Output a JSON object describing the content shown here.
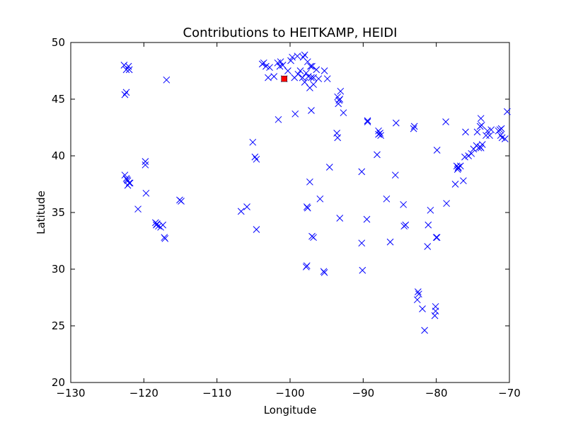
{
  "chart_data": {
    "type": "scatter",
    "title": "Contributions to HEITKAMP, HEIDI",
    "xlabel": "Longitude",
    "ylabel": "Latitude",
    "xlim": [
      -130,
      -70
    ],
    "ylim": [
      20,
      50
    ],
    "xticks": [
      -130,
      -120,
      -110,
      -100,
      -90,
      -80,
      -70
    ],
    "yticks": [
      20,
      25,
      30,
      35,
      40,
      45,
      50
    ],
    "marker_color": "#0000ff",
    "highlight_color": "#ff0000",
    "points": [
      [
        -122.7,
        48.0
      ],
      [
        -122.4,
        47.6
      ],
      [
        -122.1,
        47.9
      ],
      [
        -122.0,
        47.6
      ],
      [
        -122.6,
        45.4
      ],
      [
        -122.4,
        45.6
      ],
      [
        -116.9,
        46.7
      ],
      [
        -122.6,
        38.3
      ],
      [
        -122.4,
        38.0
      ],
      [
        -122.2,
        37.8
      ],
      [
        -122.0,
        37.6
      ],
      [
        -122.2,
        37.4
      ],
      [
        -121.9,
        37.6
      ],
      [
        -122.3,
        37.9
      ],
      [
        -119.8,
        39.5
      ],
      [
        -119.8,
        39.2
      ],
      [
        -119.7,
        36.7
      ],
      [
        -120.8,
        35.3
      ],
      [
        -118.4,
        34.1
      ],
      [
        -118.2,
        34.0
      ],
      [
        -118.0,
        33.8
      ],
      [
        -117.7,
        33.7
      ],
      [
        -117.4,
        33.9
      ],
      [
        -118.3,
        33.9
      ],
      [
        -117.2,
        32.8
      ],
      [
        -117.1,
        32.7
      ],
      [
        -115.1,
        36.1
      ],
      [
        -114.9,
        36.0
      ],
      [
        -106.7,
        35.1
      ],
      [
        -105.9,
        35.5
      ],
      [
        -104.6,
        33.5
      ],
      [
        -105.1,
        41.2
      ],
      [
        -104.8,
        39.9
      ],
      [
        -104.6,
        39.7
      ],
      [
        -103.8,
        48.1
      ],
      [
        -103.6,
        48.2
      ],
      [
        -103.3,
        47.9
      ],
      [
        -103.0,
        46.9
      ],
      [
        -102.8,
        47.8
      ],
      [
        -102.2,
        47.0
      ],
      [
        -101.7,
        48.2
      ],
      [
        -101.4,
        47.9
      ],
      [
        -101.3,
        48.3
      ],
      [
        -101.0,
        48.0
      ],
      [
        -100.8,
        46.8
      ],
      [
        -100.3,
        47.5
      ],
      [
        -99.9,
        48.4
      ],
      [
        -99.7,
        48.7
      ],
      [
        -99.4,
        46.9
      ],
      [
        -99.0,
        48.8
      ],
      [
        -98.9,
        47.2
      ],
      [
        -98.6,
        47.5
      ],
      [
        -98.2,
        48.7
      ],
      [
        -98.0,
        48.9
      ],
      [
        -97.8,
        47.3
      ],
      [
        -97.6,
        48.3
      ],
      [
        -97.2,
        47.9
      ],
      [
        -97.0,
        47.9
      ],
      [
        -97.1,
        46.9
      ],
      [
        -96.8,
        46.9
      ],
      [
        -96.8,
        46.3
      ],
      [
        -97.3,
        46.0
      ],
      [
        -96.4,
        47.6
      ],
      [
        -96.1,
        46.8
      ],
      [
        -95.3,
        47.5
      ],
      [
        -94.9,
        46.8
      ],
      [
        -98.3,
        46.9
      ],
      [
        -98.0,
        46.5
      ],
      [
        -97.5,
        47.0
      ],
      [
        -101.6,
        43.2
      ],
      [
        -99.3,
        43.7
      ],
      [
        -97.1,
        44.0
      ],
      [
        -93.5,
        45.2
      ],
      [
        -93.3,
        44.9
      ],
      [
        -93.2,
        45.0
      ],
      [
        -93.4,
        44.6
      ],
      [
        -93.1,
        45.7
      ],
      [
        -92.7,
        43.8
      ],
      [
        -93.6,
        42.0
      ],
      [
        -93.5,
        41.6
      ],
      [
        -89.4,
        43.1
      ],
      [
        -89.4,
        43.0
      ],
      [
        -87.9,
        41.9
      ],
      [
        -87.7,
        42.0
      ],
      [
        -87.6,
        41.8
      ],
      [
        -87.9,
        42.2
      ],
      [
        -88.1,
        40.1
      ],
      [
        -85.5,
        42.9
      ],
      [
        -83.0,
        42.6
      ],
      [
        -83.1,
        42.4
      ],
      [
        -90.2,
        38.6
      ],
      [
        -85.6,
        38.3
      ],
      [
        -86.8,
        36.2
      ],
      [
        -84.5,
        35.7
      ],
      [
        -94.6,
        39.0
      ],
      [
        -97.3,
        37.7
      ],
      [
        -95.9,
        36.2
      ],
      [
        -89.5,
        34.4
      ],
      [
        -93.2,
        34.5
      ],
      [
        -90.2,
        32.3
      ],
      [
        -90.1,
        29.9
      ],
      [
        -97.7,
        35.5
      ],
      [
        -97.6,
        35.4
      ],
      [
        -97.0,
        32.9
      ],
      [
        -96.8,
        32.8
      ],
      [
        -97.7,
        30.3
      ],
      [
        -97.8,
        30.2
      ],
      [
        -95.4,
        29.8
      ],
      [
        -95.3,
        29.7
      ],
      [
        -84.4,
        33.8
      ],
      [
        -84.2,
        33.9
      ],
      [
        -86.3,
        32.4
      ],
      [
        -81.1,
        33.9
      ],
      [
        -81.2,
        32.0
      ],
      [
        -80.8,
        35.2
      ],
      [
        -78.6,
        35.8
      ],
      [
        -79.9,
        32.8
      ],
      [
        -80.0,
        32.8
      ],
      [
        -82.5,
        28.0
      ],
      [
        -82.4,
        27.8
      ],
      [
        -82.6,
        27.3
      ],
      [
        -81.9,
        26.5
      ],
      [
        -80.1,
        26.7
      ],
      [
        -80.1,
        26.3
      ],
      [
        -80.2,
        25.9
      ],
      [
        -81.6,
        24.6
      ],
      [
        -79.9,
        40.5
      ],
      [
        -78.7,
        43.0
      ],
      [
        -76.0,
        42.1
      ],
      [
        -76.3,
        37.8
      ],
      [
        -77.4,
        37.5
      ],
      [
        -77.2,
        39.1
      ],
      [
        -77.0,
        38.9
      ],
      [
        -77.1,
        38.8
      ],
      [
        -76.7,
        39.1
      ],
      [
        -77.0,
        39.0
      ],
      [
        -76.1,
        39.9
      ],
      [
        -75.6,
        40.0
      ],
      [
        -75.2,
        40.2
      ],
      [
        -74.9,
        40.6
      ],
      [
        -74.5,
        40.9
      ],
      [
        -74.2,
        40.7
      ],
      [
        -74.0,
        40.8
      ],
      [
        -73.9,
        40.7
      ],
      [
        -73.7,
        41.0
      ],
      [
        -73.8,
        42.7
      ],
      [
        -73.9,
        43.3
      ],
      [
        -73.2,
        41.8
      ],
      [
        -73.0,
        42.2
      ],
      [
        -72.7,
        41.8
      ],
      [
        -72.5,
        42.3
      ],
      [
        -71.5,
        42.2
      ],
      [
        -71.1,
        42.4
      ],
      [
        -71.3,
        42.3
      ],
      [
        -71.2,
        41.8
      ],
      [
        -71.0,
        41.6
      ],
      [
        -70.6,
        41.5
      ],
      [
        -70.3,
        43.9
      ],
      [
        -74.0,
        42.6
      ],
      [
        -74.4,
        42.1
      ]
    ],
    "highlight_points": [
      [
        -100.8,
        46.8
      ]
    ]
  }
}
